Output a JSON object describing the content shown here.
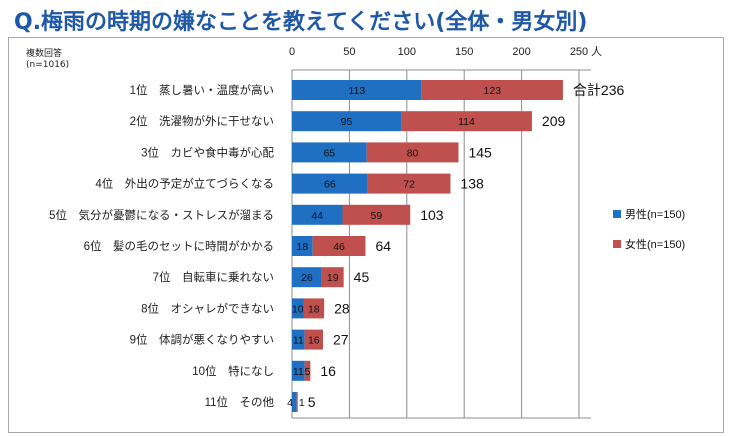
{
  "title": "Q.梅雨の時期の嫌なことを教えてください(全体・男女別)",
  "note_line1": "複数回答",
  "note_line2": "(n=1016)",
  "colors": {
    "male": "#1f6fc2",
    "female": "#c0504d",
    "title": "#1f58a6"
  },
  "chart_data": {
    "type": "bar",
    "orientation": "horizontal",
    "stacked": true,
    "axis_unit": "人",
    "xlim": [
      0,
      250
    ],
    "ticks": [
      0,
      50,
      100,
      150,
      200,
      250
    ],
    "tick_labels": [
      "0",
      "50",
      "100",
      "150",
      "200",
      "250"
    ],
    "grid": true,
    "legend_position": "right",
    "total_prefix": "合計",
    "categories": [
      "1位　蒸し暑い・温度が高い",
      "2位　洗濯物が外に干せない",
      "3位　カビや食中毒が心配",
      "4位　外出の予定が立てづらくなる",
      "5位　気分が憂鬱になる・ストレスが溜まる",
      "6位　髪の毛のセットに時間がかかる",
      "7位　自転車に乗れない",
      "8位　オシャレができない",
      "9位　体調が悪くなりやすい",
      "10位　特になし",
      "11位　その他"
    ],
    "series": [
      {
        "name": "男性(n=150)",
        "values": [
          113,
          95,
          65,
          66,
          44,
          18,
          26,
          10,
          11,
          11,
          4
        ]
      },
      {
        "name": "女性(n=150)",
        "values": [
          123,
          114,
          80,
          72,
          59,
          46,
          19,
          18,
          16,
          5,
          1
        ]
      }
    ],
    "totals": [
      236,
      209,
      145,
      138,
      103,
      64,
      45,
      28,
      27,
      16,
      5
    ]
  }
}
